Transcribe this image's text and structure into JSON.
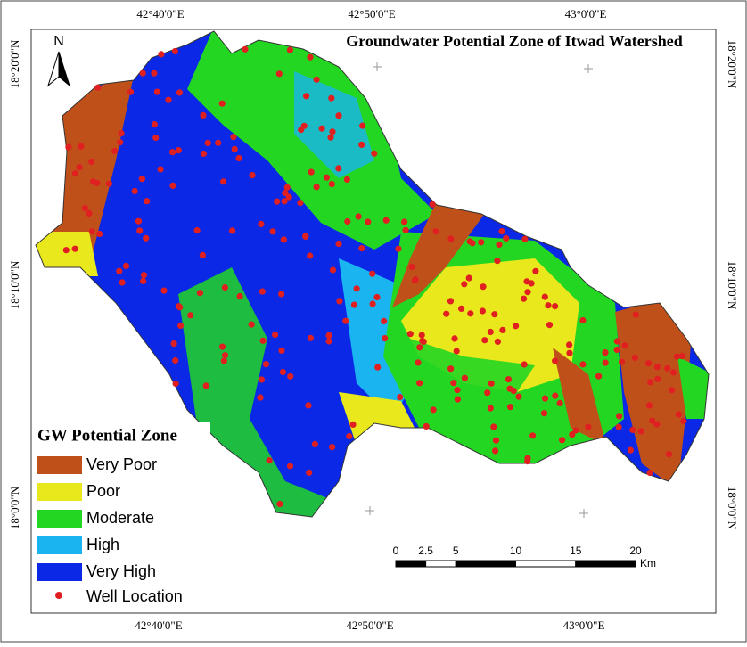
{
  "title": "Groundwater Potential Zone of Itwad Watershed",
  "north": "N",
  "graticule": {
    "top": [
      "42°40'0\"E",
      "42°50'0\"E",
      "43°0'0\"E"
    ],
    "bottom": [
      "42°40'0\"E",
      "42°50'0\"E",
      "43°0'0\"E"
    ],
    "left": [
      "18°20'0\"N",
      "18°10'0\"N",
      "18°0'0\"N"
    ],
    "right": [
      "18°20'0\"N",
      "18°10'0\"N",
      "18°0'0\"N"
    ]
  },
  "legend": {
    "title": "GW Potential Zone",
    "items": [
      {
        "label": "Very Poor",
        "color": "#c0501a"
      },
      {
        "label": "Poor",
        "color": "#e8e81c"
      },
      {
        "label": "Moderate",
        "color": "#22d622"
      },
      {
        "label": "High",
        "color": "#1ab4f0"
      },
      {
        "label": "Very High",
        "color": "#0a28e6"
      }
    ],
    "wells": {
      "label": "Well Location",
      "color": "#e02020"
    }
  },
  "scale_bar": {
    "ticks": [
      0,
      2.5,
      5,
      10,
      15,
      20
    ],
    "unit": "Km"
  }
}
